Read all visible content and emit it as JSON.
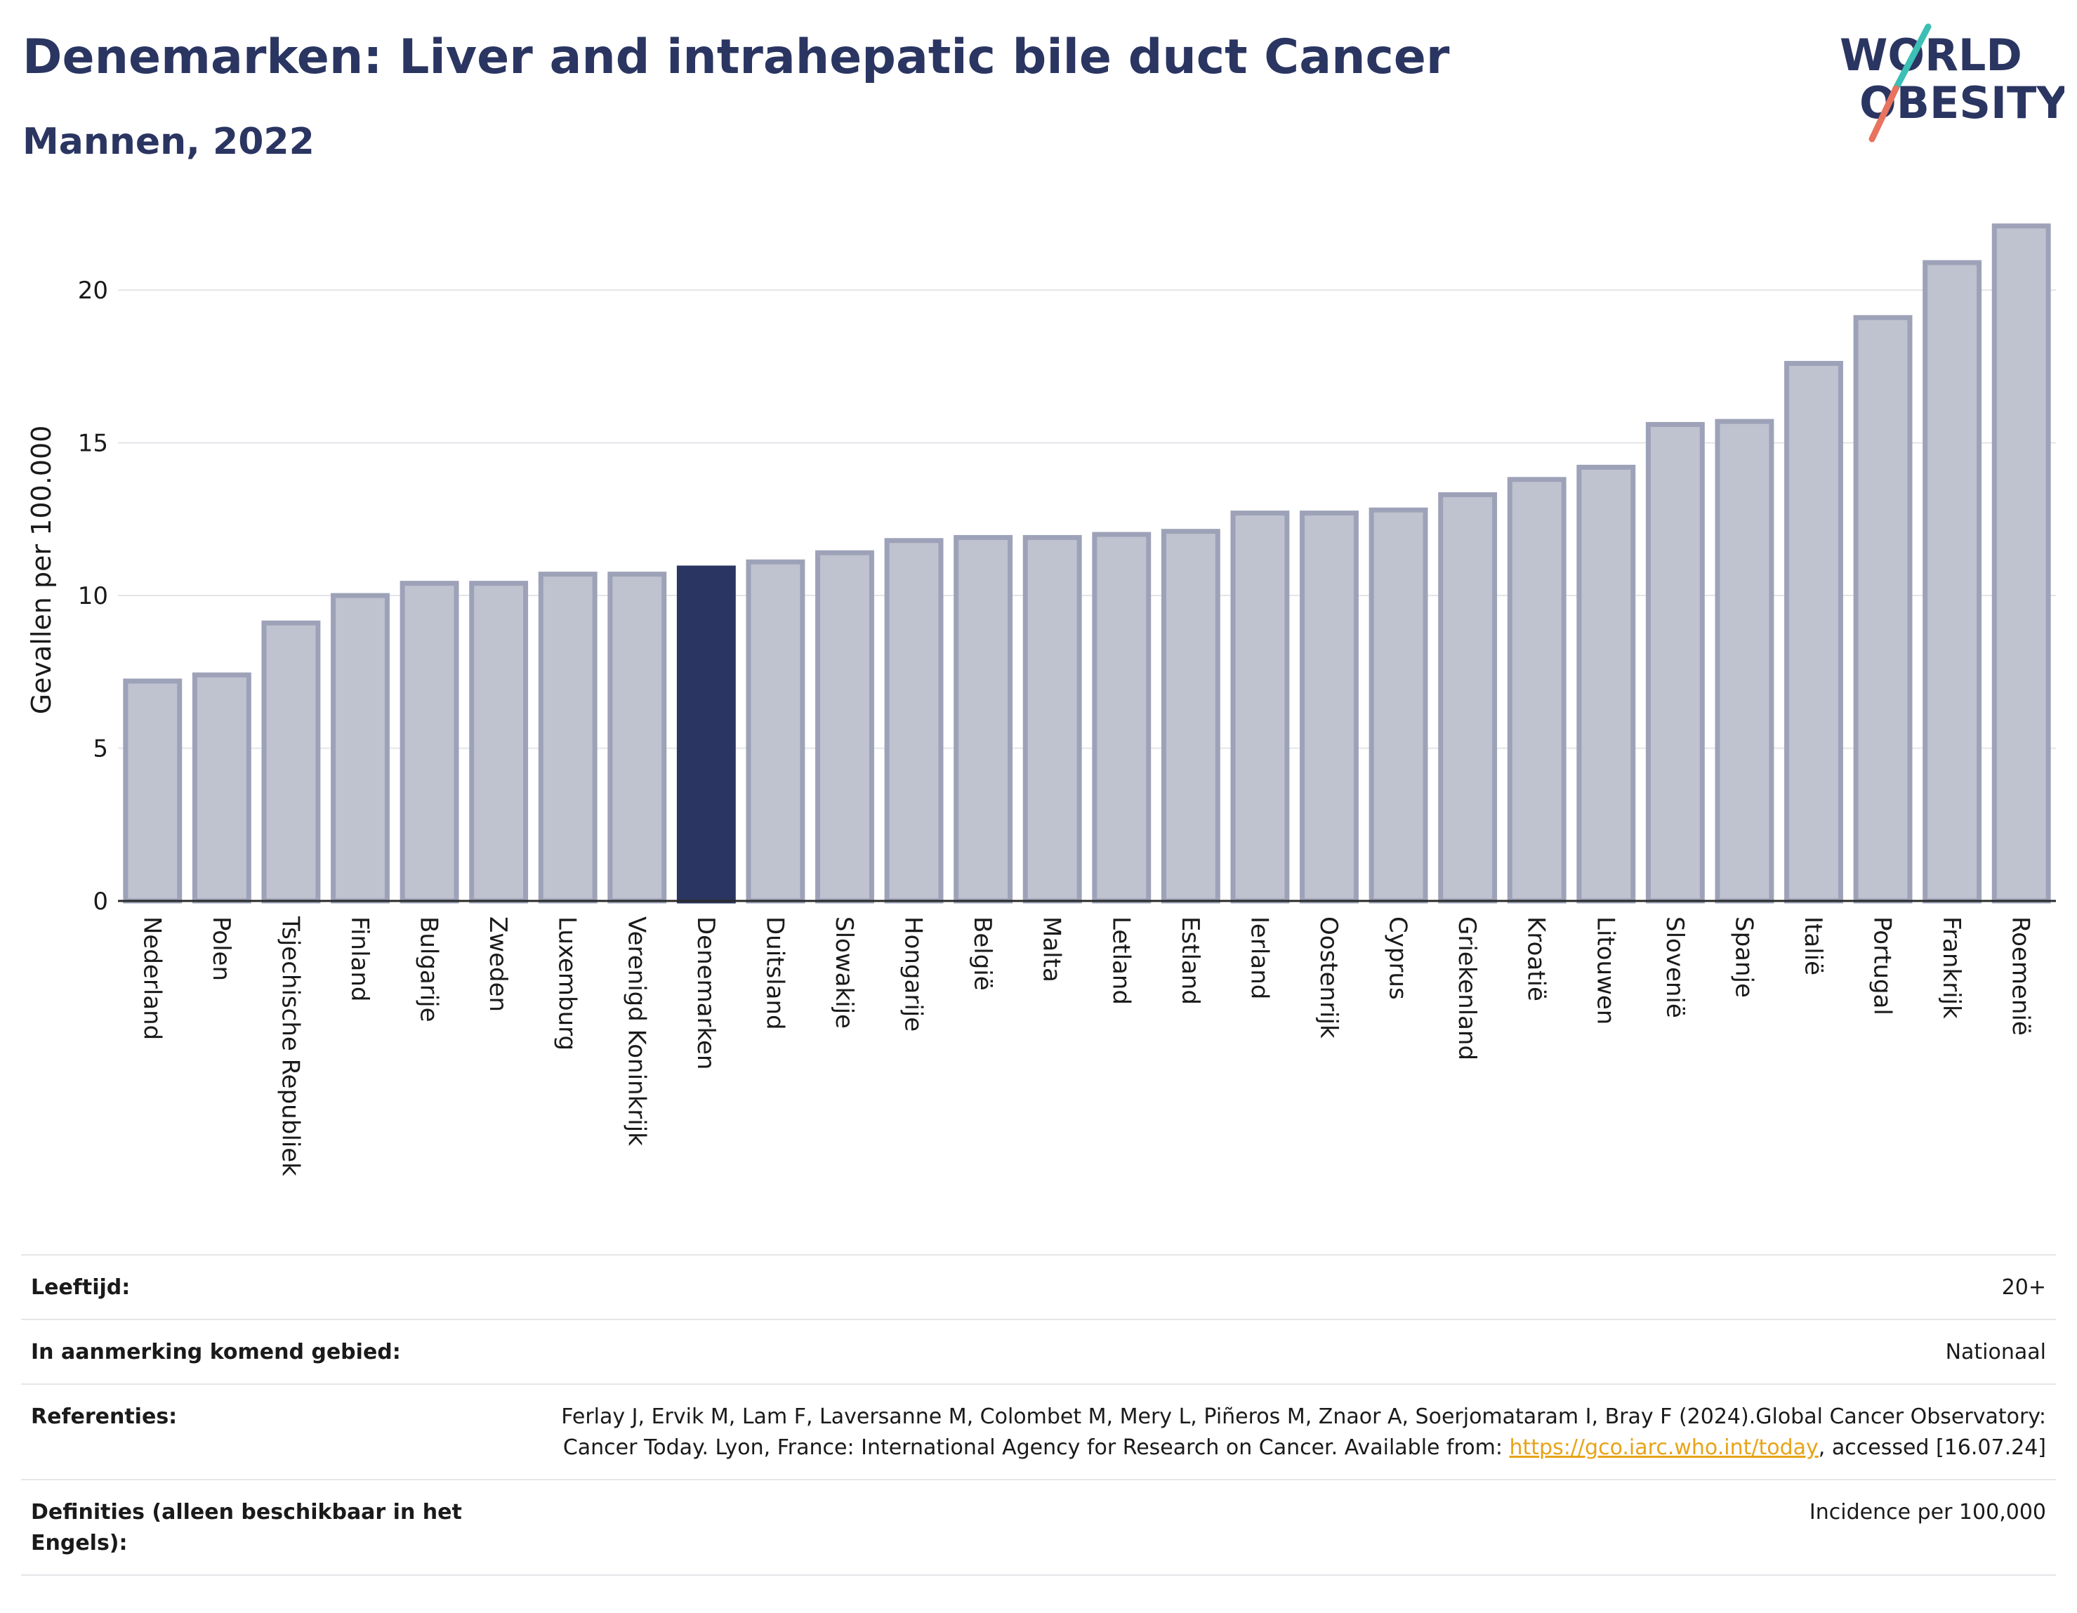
{
  "header": {
    "title": "Denemarken: Liver and intrahepatic bile duct Cancer",
    "subtitle": "Mannen, 2022"
  },
  "logo": {
    "line1": "WORLD",
    "line2": "OBESITY"
  },
  "colors": {
    "highlight": "#2a3561",
    "bar": "#bfc2cf",
    "bar_border": "#9da2b8",
    "logo_teal": "#3cbfb4",
    "logo_coral": "#e8735f"
  },
  "chart_data": {
    "type": "bar",
    "ylabel": "Gevallen per 100.000",
    "xlabel": "",
    "ylim": [
      0,
      22.6
    ],
    "yticks": [
      0,
      5,
      10,
      15,
      20
    ],
    "grid": true,
    "highlight": "Denemarken",
    "categories": [
      "Nederland",
      "Polen",
      "Tsjechische Republiek",
      "Finland",
      "Bulgarije",
      "Zweden",
      "Luxemburg",
      "Verenigd Koninkrijk",
      "Denemarken",
      "Duitsland",
      "Slowakije",
      "Hongarije",
      "België",
      "Malta",
      "Letland",
      "Estland",
      "Ierland",
      "Oostenrijk",
      "Cyprus",
      "Griekenland",
      "Kroatië",
      "Litouwen",
      "Slovenië",
      "Spanje",
      "Italië",
      "Portugal",
      "Frankrijk",
      "Roemenië"
    ],
    "values": [
      7.2,
      7.4,
      9.1,
      10.0,
      10.4,
      10.4,
      10.7,
      10.7,
      10.9,
      11.1,
      11.4,
      11.8,
      11.9,
      11.9,
      12.0,
      12.1,
      12.7,
      12.7,
      12.8,
      13.3,
      13.8,
      14.2,
      15.6,
      15.7,
      17.6,
      19.1,
      20.9,
      22.1
    ]
  },
  "info": {
    "age_label": "Leeftijd:",
    "age_value": "20+",
    "area_label": "In aanmerking komend gebied:",
    "area_value": "Nationaal",
    "ref_label": "Referenties:",
    "ref_text_1": "Ferlay J, Ervik M, Lam F, Laversanne M, Colombet M, Mery L, Piñeros M, Znaor A, Soerjomataram I, Bray F (2024).Global Cancer Observatory: Cancer Today. Lyon, France: International Agency for Research on Cancer. Available from: ",
    "ref_link": "https://gco.iarc.who.int/today",
    "ref_text_2": ", accessed [16.07.24]",
    "def_label": "Definities (alleen beschikbaar in het Engels):",
    "def_value": "Incidence per 100,000"
  }
}
